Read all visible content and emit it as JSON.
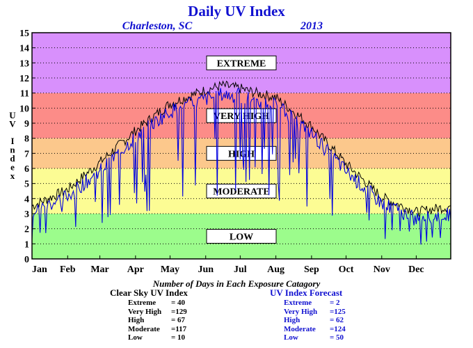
{
  "chart_data": {
    "type": "line",
    "title": "Daily UV Index",
    "subtitle_location": "Charleston, SC",
    "subtitle_year": "2013",
    "ylabel": "UV Index",
    "xlabel": "",
    "ylim": [
      0,
      15
    ],
    "xlim": [
      1,
      365
    ],
    "yticks": [
      "0",
      "1",
      "2",
      "3",
      "4",
      "5",
      "6",
      "7",
      "8",
      "9",
      "10",
      "11",
      "12",
      "13",
      "14",
      "15"
    ],
    "month_labels": [
      "Jan",
      "Feb",
      "Mar",
      "Apr",
      "May",
      "Jun",
      "Jul",
      "Aug",
      "Sep",
      "Oct",
      "Nov",
      "Dec"
    ],
    "grid": true,
    "bands": [
      {
        "label": "LOW",
        "from": 0,
        "to": 3,
        "color": "#9cfc8c"
      },
      {
        "label": "MODERATE",
        "from": 3,
        "to": 6,
        "color": "#fcfc94"
      },
      {
        "label": "HIGH",
        "from": 6,
        "to": 8,
        "color": "#fcc88c"
      },
      {
        "label": "VERY HIGH",
        "from": 8,
        "to": 11,
        "color": "#fc8c88"
      },
      {
        "label": "EXTREME",
        "from": 11,
        "to": 15,
        "color": "#d890fc"
      }
    ],
    "series": [
      {
        "name": "Clear Sky UV Index",
        "color": "#000000",
        "monthly_x": [
          1,
          32,
          60,
          91,
          121,
          152,
          166,
          182,
          196,
          213,
          244,
          274,
          305,
          335,
          365
        ],
        "monthly_values": [
          3.5,
          4.6,
          6.4,
          8.5,
          10.3,
          11.2,
          11.5,
          11.3,
          11.0,
          10.7,
          8.8,
          6.3,
          4.1,
          3.1,
          3.5
        ]
      },
      {
        "name": "UV Index Forecast",
        "color": "#0000e0",
        "monthly_x": [
          1,
          32,
          60,
          91,
          121,
          152,
          166,
          182,
          196,
          213,
          244,
          274,
          305,
          335,
          365
        ],
        "monthly_values": [
          3.1,
          4.2,
          5.8,
          8.1,
          9.8,
          10.6,
          10.9,
          10.8,
          10.5,
          10.2,
          8.3,
          5.8,
          3.7,
          2.7,
          3.0
        ]
      }
    ]
  },
  "stats_title": "Number of Days in Each Exposure Catagory",
  "clear_sky_stats": {
    "heading": "Clear Sky UV Index",
    "rows": [
      {
        "label": "Extreme",
        "value": "= 40"
      },
      {
        "label": "Very High",
        "value": "=129"
      },
      {
        "label": "High",
        "value": "= 67"
      },
      {
        "label": "Moderate",
        "value": "=117"
      },
      {
        "label": "Low",
        "value": "= 10"
      }
    ]
  },
  "forecast_stats": {
    "heading": "UV Index Forecast",
    "rows": [
      {
        "label": "Extreme",
        "value": "= 2"
      },
      {
        "label": "Very High",
        "value": "=125"
      },
      {
        "label": "High",
        "value": "= 62"
      },
      {
        "label": "Moderate",
        "value": "=124"
      },
      {
        "label": "Low",
        "value": "= 50"
      }
    ]
  }
}
